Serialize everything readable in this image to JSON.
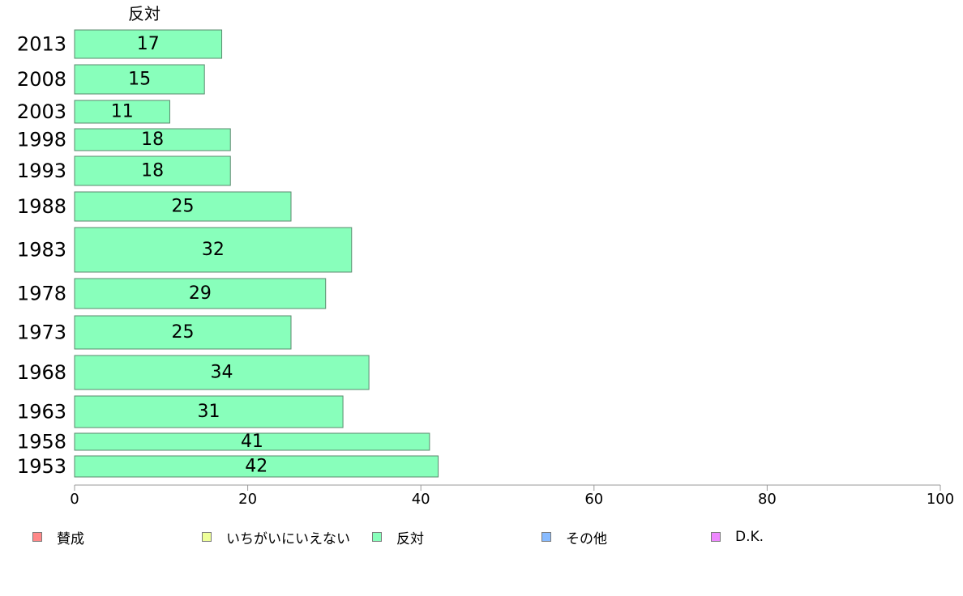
{
  "chart_data": {
    "type": "bar",
    "orientation": "horizontal",
    "column_title": "反対",
    "categories": [
      "2013",
      "2008",
      "2003",
      "1998",
      "1993",
      "1988",
      "1983",
      "1978",
      "1973",
      "1968",
      "1963",
      "1958",
      "1953"
    ],
    "series": [
      {
        "name": "反対",
        "values": [
          17,
          15,
          11,
          18,
          18,
          25,
          32,
          29,
          25,
          34,
          31,
          41,
          42
        ]
      }
    ],
    "data_labels": [
      "17",
      "15",
      "11",
      "18",
      "18",
      "25",
      "32",
      "29",
      "25",
      "34",
      "31",
      "41",
      "42"
    ],
    "xlim": [
      0,
      100
    ],
    "x_ticks": [
      "0",
      "20",
      "40",
      "60",
      "80",
      "100"
    ],
    "grid": false,
    "bar_color": "#88ffbb",
    "legend_placement": "bottom",
    "legend": [
      {
        "label": "賛成",
        "color": "#ff8888"
      },
      {
        "label": "いちがいにいえない",
        "color": "#eeff99"
      },
      {
        "label": "反対",
        "color": "#88ffbb"
      },
      {
        "label": "その他",
        "color": "#88bbff"
      },
      {
        "label": "D.K.",
        "color": "#ee88ff"
      }
    ]
  }
}
